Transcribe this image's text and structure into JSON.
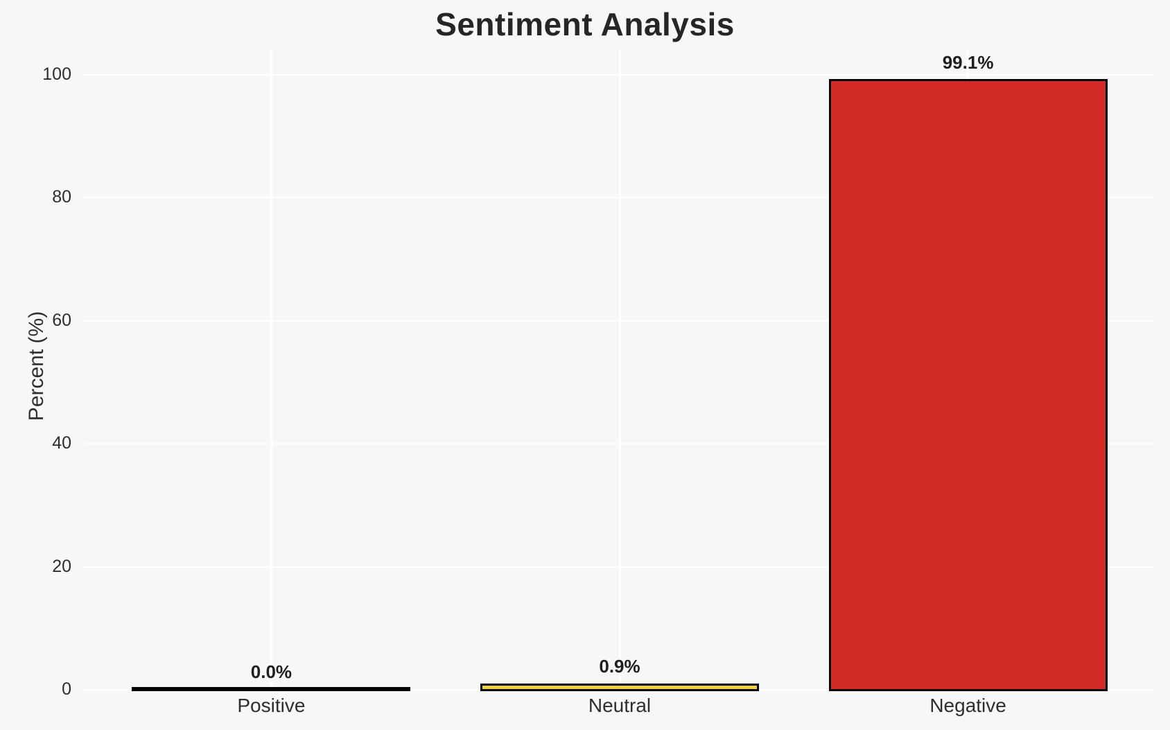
{
  "chart_data": {
    "type": "bar",
    "title": "Sentiment Analysis",
    "ylabel": "Percent (%)",
    "xlabel": "",
    "categories": [
      "Positive",
      "Neutral",
      "Negative"
    ],
    "values": [
      0.0,
      0.9,
      99.1
    ],
    "value_labels": [
      "0.0%",
      "0.9%",
      "99.1%"
    ],
    "bar_colors": [
      "#2ca02c",
      "#f0d03c",
      "#d32b27"
    ],
    "bar_edge_color": "#000000",
    "y_ticks": [
      0,
      20,
      40,
      60,
      80,
      100
    ],
    "ylim": [
      0,
      104
    ],
    "grid": "both",
    "gridline_color": "#ffffff",
    "background_color": "#f7f7f7",
    "legend_position": "none"
  }
}
